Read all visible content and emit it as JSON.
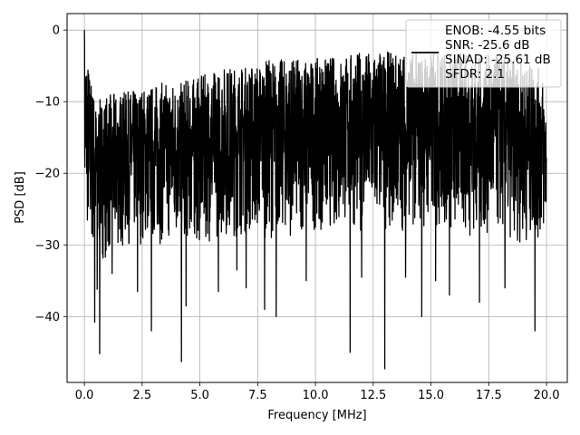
{
  "chart_data": {
    "type": "line",
    "xlabel": "Frequency [MHz]",
    "ylabel": "PSD [dB]",
    "xlim": [
      -0.75,
      20.9
    ],
    "ylim": [
      -49.2,
      2.3
    ],
    "xticks": [
      0.0,
      2.5,
      5.0,
      7.5,
      10.0,
      12.5,
      15.0,
      17.5,
      20.0
    ],
    "xtick_labels": [
      "0.0",
      "2.5",
      "5.0",
      "7.5",
      "10.0",
      "12.5",
      "15.0",
      "17.5",
      "20.0"
    ],
    "yticks": [
      0,
      -10,
      -20,
      -30,
      -40
    ],
    "ytick_labels": [
      "0",
      "−10",
      "−20",
      "−30",
      "−40"
    ],
    "grid": true,
    "legend_position": "top-right",
    "series": [
      {
        "line_color": "#000000",
        "legend_lines": [
          "ENOB: -4.55 bits",
          "SNR: -25.6 dB",
          "SINAD: -25.61 dB",
          "SFDR: 2.1"
        ],
        "envelope": {
          "x": [
            0.0,
            0.1,
            0.25,
            0.5,
            1.0,
            2.0,
            3.0,
            4.0,
            5.0,
            6.0,
            7.0,
            8.0,
            9.0,
            10.0,
            11.0,
            12.0,
            13.0,
            14.0,
            15.0,
            16.0,
            17.0,
            18.0,
            19.0,
            19.8,
            20.0
          ],
          "upper": [
            0.0,
            -3.0,
            -6.0,
            -10.0,
            -9.0,
            -8.5,
            -7.5,
            -7.0,
            -6.5,
            -5.0,
            -5.0,
            -4.0,
            -4.0,
            -4.0,
            -3.5,
            -3.0,
            -3.0,
            -3.0,
            -3.0,
            -3.0,
            -3.5,
            -3.5,
            -4.5,
            -5.5,
            -11.0
          ],
          "lower": [
            -27.0,
            -29.0,
            -31.0,
            -32.0,
            -32.0,
            -30.0,
            -30.0,
            -30.0,
            -30.0,
            -29.0,
            -29.0,
            -29.0,
            -29.0,
            -28.0,
            -28.0,
            -28.0,
            -28.0,
            -28.0,
            -28.0,
            -29.0,
            -29.0,
            -29.0,
            -30.0,
            -30.0,
            -29.0
          ]
        },
        "dips": [
          {
            "x": 0.45,
            "y": -40.8
          },
          {
            "x": 0.55,
            "y": -36.2
          },
          {
            "x": 0.66,
            "y": -45.2
          },
          {
            "x": 1.2,
            "y": -34.0
          },
          {
            "x": 2.3,
            "y": -36.5
          },
          {
            "x": 2.9,
            "y": -42.0
          },
          {
            "x": 4.2,
            "y": -46.3
          },
          {
            "x": 4.4,
            "y": -38.5
          },
          {
            "x": 5.8,
            "y": -36.5
          },
          {
            "x": 6.6,
            "y": -33.5
          },
          {
            "x": 7.0,
            "y": -36.0
          },
          {
            "x": 7.8,
            "y": -39.0
          },
          {
            "x": 8.3,
            "y": -40.0
          },
          {
            "x": 9.6,
            "y": -35.0
          },
          {
            "x": 11.5,
            "y": -45.0
          },
          {
            "x": 12.0,
            "y": -34.5
          },
          {
            "x": 13.0,
            "y": -47.3
          },
          {
            "x": 13.9,
            "y": -34.5
          },
          {
            "x": 14.6,
            "y": -40.0
          },
          {
            "x": 15.2,
            "y": -35.0
          },
          {
            "x": 15.8,
            "y": -37.0
          },
          {
            "x": 17.1,
            "y": -38.0
          },
          {
            "x": 18.2,
            "y": -36.0
          },
          {
            "x": 19.5,
            "y": -42.0
          }
        ]
      }
    ]
  }
}
